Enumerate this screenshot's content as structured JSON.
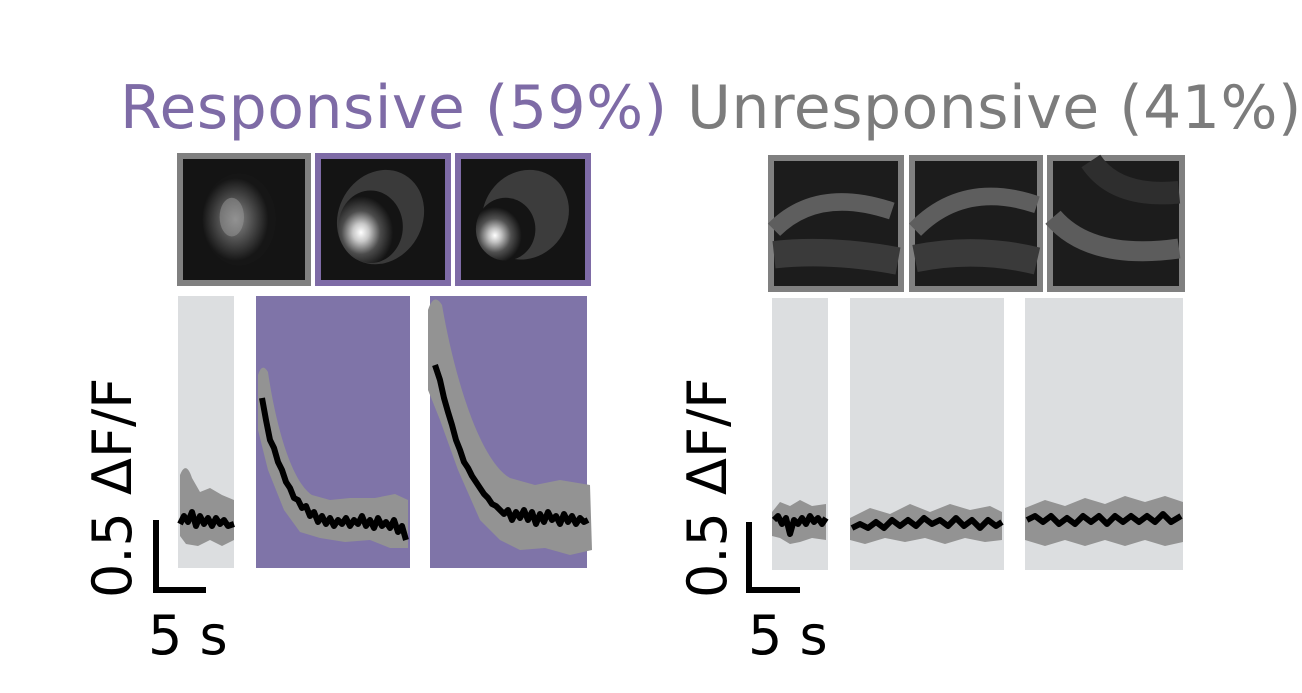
{
  "colors": {
    "responsive": "#7e6ba6",
    "responsive_panel": "#7f74a8",
    "unresponsive": "#7c7c7c",
    "unresponsive_panel": "#dcdee0",
    "thumb_border_gray": "#808080",
    "thumb_border_purple": "#7e6ba6",
    "trace": "#000000",
    "trace_band": "#939393"
  },
  "groups": [
    {
      "id": "responsive",
      "title": "Responsive (59%)",
      "thumbnails": [
        {
          "border": "gray",
          "image": "cell-dim"
        },
        {
          "border": "purple",
          "image": "cell-bright"
        },
        {
          "border": "purple",
          "image": "cell-bright"
        }
      ],
      "panels": [
        {
          "fill": "gray",
          "trace": "flat"
        },
        {
          "fill": "purple",
          "trace": "decay"
        },
        {
          "fill": "purple",
          "trace": "decay"
        }
      ],
      "scale_bar": {
        "y_label": "0.5 ΔF/F",
        "x_label": "5 s"
      }
    },
    {
      "id": "unresponsive",
      "title": "Unresponsive (41%)",
      "thumbnails": [
        {
          "border": "gray",
          "image": "tissue-arc"
        },
        {
          "border": "gray",
          "image": "tissue-arc"
        },
        {
          "border": "gray",
          "image": "tissue-arc"
        }
      ],
      "panels": [
        {
          "fill": "gray",
          "trace": "flat"
        },
        {
          "fill": "gray",
          "trace": "flat"
        },
        {
          "fill": "gray",
          "trace": "flat"
        }
      ],
      "scale_bar": {
        "y_label": "0.5 ΔF/F",
        "x_label": "5 s"
      }
    }
  ]
}
